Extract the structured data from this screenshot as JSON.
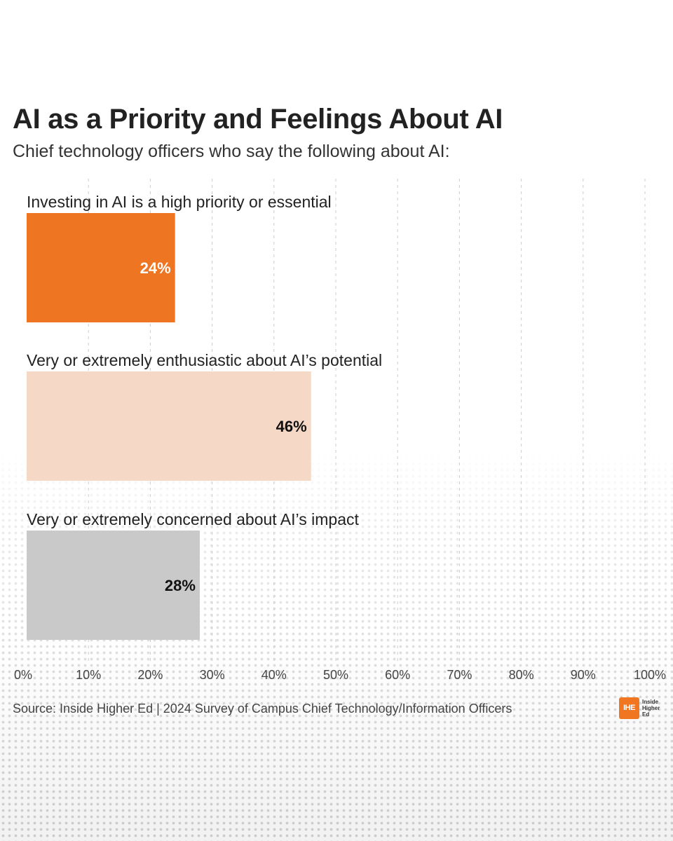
{
  "title": "AI as a Priority and Feelings About AI",
  "subtitle": "Chief technology officers who say the following about AI:",
  "source": "Source: Inside Higher Ed | 2024 Survey of Campus Chief Technology/Information Officers",
  "logo": {
    "mark": "IHE",
    "line1": "Inside",
    "line2": "Higher",
    "line3": "Ed"
  },
  "colors": {
    "accent": "#ee7623",
    "light": "#f5d8c6",
    "gray": "#c9c9c9",
    "grid": "#cccccc"
  },
  "chart_data": {
    "type": "bar",
    "orientation": "horizontal",
    "categories": [
      "Investing in AI is a high priority or essential",
      "Very or extremely enthusiastic about AI’s potential",
      "Very or extremely concerned about AI’s impact"
    ],
    "values": [
      24,
      46,
      28
    ],
    "value_labels": [
      "24%",
      "46%",
      "28%"
    ],
    "bar_colors": [
      "#ee7623",
      "#f5d8c6",
      "#c9c9c9"
    ],
    "label_colors": [
      "#ffffff",
      "#111111",
      "#111111"
    ],
    "xlim": [
      0,
      100
    ],
    "ticks": [
      0,
      10,
      20,
      30,
      40,
      50,
      60,
      70,
      80,
      90,
      100
    ],
    "tick_labels": [
      "0%",
      "10%",
      "20%",
      "30%",
      "40%",
      "50%",
      "60%",
      "70%",
      "80%",
      "90%",
      "100%"
    ],
    "grid": "vertical dashed"
  }
}
